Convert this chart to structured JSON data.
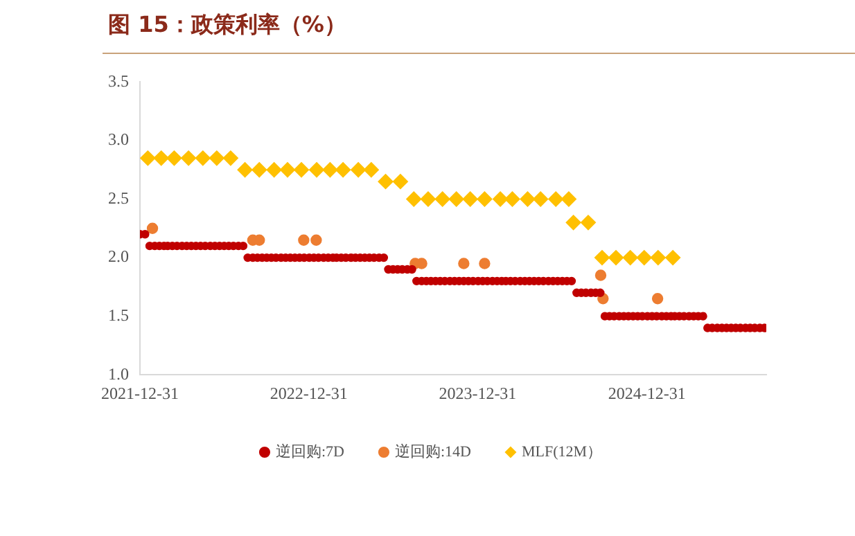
{
  "chart_data": {
    "type": "scatter",
    "title": "图 15：政策利率（%）",
    "xlim": [
      "2021-12-31",
      "2025-09-15"
    ],
    "xticks": [
      "2021-12-31",
      "2022-12-31",
      "2023-12-31",
      "2024-12-31"
    ],
    "ylim": [
      1,
      3.5
    ],
    "yticks": [
      {
        "value": 1,
        "label": "1.0"
      },
      1.5,
      {
        "value": 2,
        "label": "2.0"
      },
      2.5,
      {
        "value": 3,
        "label": "3.0"
      },
      3.5
    ],
    "grid": false,
    "legend": "bottom",
    "series": [
      {
        "name": "逆回购:7D",
        "color": "#c00000",
        "marker": "circle",
        "x": [
          "2021-12-31",
          "2022-01-11",
          "2022-01-21",
          "2022-02-01",
          "2022-02-11",
          "2022-02-21",
          "2022-03-01",
          "2022-03-11",
          "2022-03-21",
          "2022-04-01",
          "2022-04-11",
          "2022-04-21",
          "2022-05-01",
          "2022-05-11",
          "2022-05-21",
          "2022-06-01",
          "2022-06-11",
          "2022-06-21",
          "2022-07-01",
          "2022-07-11",
          "2022-07-21",
          "2022-08-01",
          "2022-08-11",
          "2022-08-21",
          "2022-09-01",
          "2022-09-11",
          "2022-09-21",
          "2022-10-01",
          "2022-10-11",
          "2022-10-21",
          "2022-11-01",
          "2022-11-11",
          "2022-11-21",
          "2022-12-01",
          "2022-12-11",
          "2022-12-21",
          "2023-01-01",
          "2023-01-11",
          "2023-01-21",
          "2023-02-01",
          "2023-02-11",
          "2023-02-21",
          "2023-03-01",
          "2023-03-11",
          "2023-03-21",
          "2023-04-01",
          "2023-04-11",
          "2023-04-21",
          "2023-05-01",
          "2023-05-11",
          "2023-05-21",
          "2023-06-01",
          "2023-06-11",
          "2023-06-21",
          "2023-07-01",
          "2023-07-11",
          "2023-07-21",
          "2023-08-01",
          "2023-08-11",
          "2023-08-21",
          "2023-09-01",
          "2023-09-11",
          "2023-09-21",
          "2023-10-01",
          "2023-10-11",
          "2023-10-21",
          "2023-11-01",
          "2023-11-11",
          "2023-11-21",
          "2023-12-01",
          "2023-12-11",
          "2023-12-21",
          "2024-01-01",
          "2024-01-11",
          "2024-01-21",
          "2024-02-01",
          "2024-02-11",
          "2024-02-21",
          "2024-03-01",
          "2024-03-11",
          "2024-03-21",
          "2024-04-01",
          "2024-04-11",
          "2024-04-21",
          "2024-05-01",
          "2024-05-11",
          "2024-05-21",
          "2024-06-01",
          "2024-06-11",
          "2024-06-21",
          "2024-07-01",
          "2024-07-11",
          "2024-07-21",
          "2024-08-01",
          "2024-08-11",
          "2024-08-21",
          "2024-09-01",
          "2024-09-11",
          "2024-09-21",
          "2024-10-01",
          "2024-10-11",
          "2024-10-21",
          "2024-11-01",
          "2024-11-11",
          "2024-11-21",
          "2024-12-01",
          "2024-12-11",
          "2024-12-21",
          "2025-01-01",
          "2025-01-11",
          "2025-01-21",
          "2025-02-01",
          "2025-02-11",
          "2025-02-21",
          "2025-03-01",
          "2025-03-11",
          "2025-03-21",
          "2025-04-01",
          "2025-04-11",
          "2025-04-21",
          "2025-05-01",
          "2025-05-11",
          "2025-05-21",
          "2025-06-01",
          "2025-06-11",
          "2025-06-21",
          "2025-07-01",
          "2025-07-11",
          "2025-07-21",
          "2025-08-01",
          "2025-08-11",
          "2025-08-21",
          "2025-09-01",
          "2025-09-11"
        ],
        "values": [
          2.2,
          2.2,
          2.1,
          2.1,
          2.1,
          2.1,
          2.1,
          2.1,
          2.1,
          2.1,
          2.1,
          2.1,
          2.1,
          2.1,
          2.1,
          2.1,
          2.1,
          2.1,
          2.1,
          2.1,
          2.1,
          2.1,
          2.1,
          2.0,
          2.0,
          2.0,
          2.0,
          2.0,
          2.0,
          2.0,
          2.0,
          2.0,
          2.0,
          2.0,
          2.0,
          2.0,
          2.0,
          2.0,
          2.0,
          2.0,
          2.0,
          2.0,
          2.0,
          2.0,
          2.0,
          2.0,
          2.0,
          2.0,
          2.0,
          2.0,
          2.0,
          2.0,
          2.0,
          1.9,
          1.9,
          1.9,
          1.9,
          1.9,
          1.9,
          1.8,
          1.8,
          1.8,
          1.8,
          1.8,
          1.8,
          1.8,
          1.8,
          1.8,
          1.8,
          1.8,
          1.8,
          1.8,
          1.8,
          1.8,
          1.8,
          1.8,
          1.8,
          1.8,
          1.8,
          1.8,
          1.8,
          1.8,
          1.8,
          1.8,
          1.8,
          1.8,
          1.8,
          1.8,
          1.8,
          1.8,
          1.8,
          1.8,
          1.8,
          1.7,
          1.7,
          1.7,
          1.7,
          1.7,
          1.7,
          1.5,
          1.5,
          1.5,
          1.5,
          1.5,
          1.5,
          1.5,
          1.5,
          1.5,
          1.5,
          1.5,
          1.5,
          1.5,
          1.5,
          1.5,
          1.5,
          1.5,
          1.5,
          1.5,
          1.5,
          1.5,
          1.5,
          1.4,
          1.4,
          1.4,
          1.4,
          1.4,
          1.4,
          1.4,
          1.4,
          1.4,
          1.4,
          1.4,
          1.4,
          1.4
        ]
      },
      {
        "name": "逆回购:14D",
        "color": "#ed7d31",
        "marker": "circle",
        "x": [
          "2022-01-27",
          "2022-09-01",
          "2022-09-15",
          "2022-12-20",
          "2023-01-16",
          "2023-08-18",
          "2023-09-01",
          "2023-12-01",
          "2024-01-15",
          "2024-09-22",
          "2024-09-27",
          "2025-01-23"
        ],
        "values": [
          2.25,
          2.15,
          2.15,
          2.15,
          2.15,
          1.95,
          1.95,
          1.95,
          1.95,
          1.85,
          1.65,
          1.65
        ]
      },
      {
        "name": "MLF(12M）",
        "color": "#ffc000",
        "marker": "diamond",
        "x": [
          "2022-01-17",
          "2022-02-15",
          "2022-03-15",
          "2022-04-15",
          "2022-05-16",
          "2022-06-15",
          "2022-07-15",
          "2022-08-15",
          "2022-09-15",
          "2022-10-17",
          "2022-11-15",
          "2022-12-15",
          "2023-01-17",
          "2023-02-15",
          "2023-03-15",
          "2023-04-17",
          "2023-05-15",
          "2023-06-15",
          "2023-07-17",
          "2023-08-15",
          "2023-09-15",
          "2023-10-16",
          "2023-11-15",
          "2023-12-15",
          "2024-01-15",
          "2024-02-18",
          "2024-03-15",
          "2024-04-17",
          "2024-05-15",
          "2024-06-17",
          "2024-07-15",
          "2024-07-25",
          "2024-08-26",
          "2024-09-25",
          "2024-10-25",
          "2024-11-25",
          "2024-12-25",
          "2025-01-24",
          "2025-02-25"
        ],
        "values": [
          2.85,
          2.85,
          2.85,
          2.85,
          2.85,
          2.85,
          2.85,
          2.75,
          2.75,
          2.75,
          2.75,
          2.75,
          2.75,
          2.75,
          2.75,
          2.75,
          2.75,
          2.65,
          2.65,
          2.5,
          2.5,
          2.5,
          2.5,
          2.5,
          2.5,
          2.5,
          2.5,
          2.5,
          2.5,
          2.5,
          2.5,
          2.3,
          2.3,
          2.0,
          2.0,
          2.0,
          2.0,
          2.0,
          2.0
        ]
      }
    ]
  }
}
